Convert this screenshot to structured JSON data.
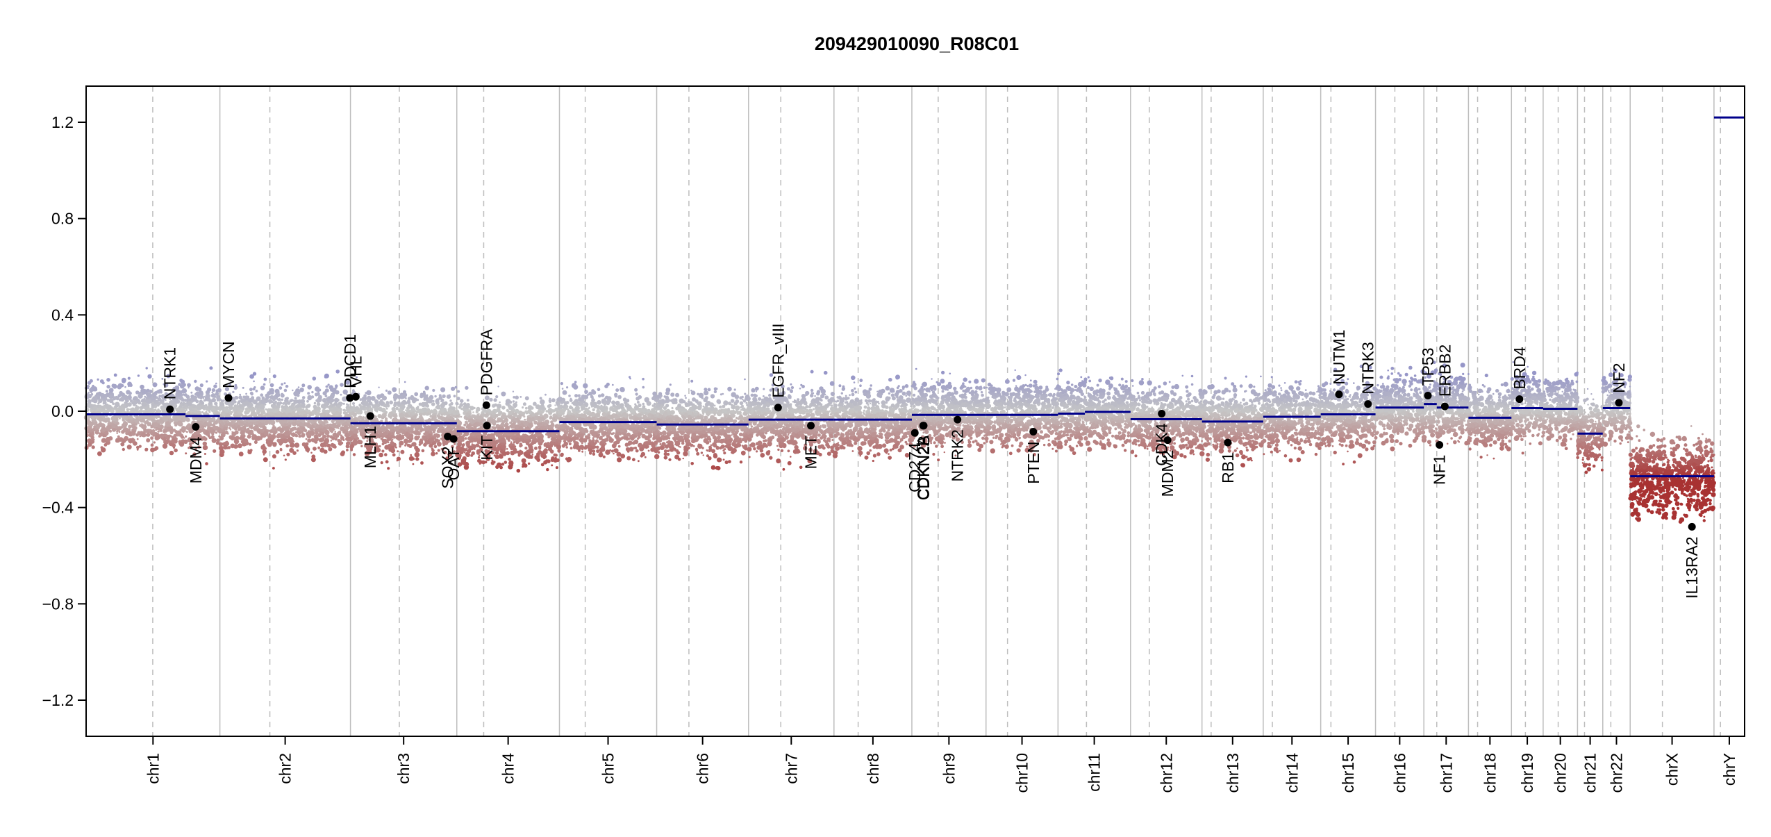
{
  "chart_data": {
    "type": "scatter",
    "title": "209429010090_R08C01",
    "ylim": [
      -1.35,
      1.35
    ],
    "y_ticks": [
      -1.2,
      -0.8,
      -0.4,
      0.0,
      0.4,
      0.8,
      1.2
    ],
    "y_tick_labels": [
      "−1.2",
      "−0.8",
      "−0.4",
      "0.0",
      "0.4",
      "0.8",
      "1.2"
    ],
    "grid": "vertical chromosome boundaries (solid) and centromeres (dashed)",
    "colors": {
      "gain": "#9a9ac8",
      "neutral": "#c6c6c6",
      "loss": "#a83a3a",
      "segment": "#00008b",
      "gene_dot": "#000000"
    },
    "chromosomes": [
      {
        "name": "chr1",
        "length": 249,
        "centromere": 124
      },
      {
        "name": "chr2",
        "length": 243,
        "centromere": 93
      },
      {
        "name": "chr3",
        "length": 198,
        "centromere": 91
      },
      {
        "name": "chr4",
        "length": 191,
        "centromere": 50
      },
      {
        "name": "chr5",
        "length": 181,
        "centromere": 48
      },
      {
        "name": "chr6",
        "length": 171,
        "centromere": 60
      },
      {
        "name": "chr7",
        "length": 159,
        "centromere": 60
      },
      {
        "name": "chr8",
        "length": 145,
        "centromere": 45
      },
      {
        "name": "chr9",
        "length": 138,
        "centromere": 49
      },
      {
        "name": "chr10",
        "length": 134,
        "centromere": 40
      },
      {
        "name": "chr11",
        "length": 135,
        "centromere": 53
      },
      {
        "name": "chr12",
        "length": 133,
        "centromere": 35
      },
      {
        "name": "chr13",
        "length": 114,
        "centromere": 17
      },
      {
        "name": "chr14",
        "length": 107,
        "centromere": 17
      },
      {
        "name": "chr15",
        "length": 102,
        "centromere": 19
      },
      {
        "name": "chr16",
        "length": 90,
        "centromere": 36
      },
      {
        "name": "chr17",
        "length": 83,
        "centromere": 24
      },
      {
        "name": "chr18",
        "length": 80,
        "centromere": 17
      },
      {
        "name": "chr19",
        "length": 59,
        "centromere": 26
      },
      {
        "name": "chr20",
        "length": 64,
        "centromere": 28
      },
      {
        "name": "chr21",
        "length": 47,
        "centromere": 13
      },
      {
        "name": "chr22",
        "length": 51,
        "centromere": 15
      },
      {
        "name": "chrX",
        "length": 156,
        "centromere": 60
      },
      {
        "name": "chrY",
        "length": 57,
        "centromere": 12
      }
    ],
    "segments": [
      {
        "chr": "chr1",
        "start": 0,
        "end": 185,
        "y": -0.013
      },
      {
        "chr": "chr1",
        "start": 185,
        "end": 249,
        "y": -0.02
      },
      {
        "chr": "chr2",
        "start": 0,
        "end": 243,
        "y": -0.03
      },
      {
        "chr": "chr3",
        "start": 0,
        "end": 198,
        "y": -0.05
      },
      {
        "chr": "chr4",
        "start": 0,
        "end": 191,
        "y": -0.083
      },
      {
        "chr": "chr5",
        "start": 0,
        "end": 181,
        "y": -0.045
      },
      {
        "chr": "chr6",
        "start": 0,
        "end": 171,
        "y": -0.055
      },
      {
        "chr": "chr7",
        "start": 0,
        "end": 159,
        "y": -0.035
      },
      {
        "chr": "chr8",
        "start": 0,
        "end": 145,
        "y": -0.035
      },
      {
        "chr": "chr9",
        "start": 0,
        "end": 138,
        "y": -0.015
      },
      {
        "chr": "chr10",
        "start": 0,
        "end": 134,
        "y": -0.015
      },
      {
        "chr": "chr11",
        "start": 0,
        "end": 50,
        "y": -0.01
      },
      {
        "chr": "chr11",
        "start": 50,
        "end": 135,
        "y": -0.003
      },
      {
        "chr": "chr12",
        "start": 0,
        "end": 133,
        "y": -0.033
      },
      {
        "chr": "chr13",
        "start": 0,
        "end": 114,
        "y": -0.043
      },
      {
        "chr": "chr14",
        "start": 0,
        "end": 107,
        "y": -0.023
      },
      {
        "chr": "chr15",
        "start": 0,
        "end": 102,
        "y": -0.013
      },
      {
        "chr": "chr16",
        "start": 0,
        "end": 90,
        "y": 0.015
      },
      {
        "chr": "chr17",
        "start": 0,
        "end": 24,
        "y": 0.03
      },
      {
        "chr": "chr17",
        "start": 24,
        "end": 83,
        "y": 0.015
      },
      {
        "chr": "chr18",
        "start": 0,
        "end": 80,
        "y": -0.027
      },
      {
        "chr": "chr19",
        "start": 0,
        "end": 59,
        "y": 0.013
      },
      {
        "chr": "chr20",
        "start": 0,
        "end": 64,
        "y": 0.01
      },
      {
        "chr": "chr21",
        "start": 0,
        "end": 47,
        "y": -0.093
      },
      {
        "chr": "chr22",
        "start": 0,
        "end": 51,
        "y": 0.013
      },
      {
        "chr": "chrX",
        "start": 0,
        "end": 156,
        "y": -0.27
      },
      {
        "chr": "chrY",
        "start": 0,
        "end": 57,
        "y": 1.22
      }
    ],
    "genes": [
      {
        "name": "NTRK1",
        "chr": "chr1",
        "pos": 156,
        "y": 0.008
      },
      {
        "name": "MDM4",
        "chr": "chr1",
        "pos": 204,
        "y": -0.065
      },
      {
        "name": "MYCN",
        "chr": "chr2",
        "pos": 16,
        "y": 0.055
      },
      {
        "name": "PDCD1",
        "chr": "chr2",
        "pos": 242,
        "y": 0.055
      },
      {
        "name": "VHL",
        "chr": "chr3",
        "pos": 10,
        "y": 0.06
      },
      {
        "name": "MLH1",
        "chr": "chr3",
        "pos": 37,
        "y": -0.02
      },
      {
        "name": "SOX2",
        "chr": "chr3",
        "pos": 181,
        "y": -0.105
      },
      {
        "name": "OAT",
        "chr": "chr3",
        "pos": 192,
        "y": -0.115
      },
      {
        "name": "PDGFRA",
        "chr": "chr4",
        "pos": 55,
        "y": 0.025
      },
      {
        "name": "KIT",
        "chr": "chr4",
        "pos": 56,
        "y": -0.06
      },
      {
        "name": "EGFR_vIII",
        "chr": "chr7",
        "pos": 55,
        "y": 0.015
      },
      {
        "name": "MET",
        "chr": "chr7",
        "pos": 116,
        "y": -0.06
      },
      {
        "name": "CD274",
        "chr": "chr9",
        "pos": 5.5,
        "y": -0.09
      },
      {
        "name": "CDKN2A",
        "chr": "chr9",
        "pos": 21,
        "y": -0.06
      },
      {
        "name": "CDKN2B",
        "chr": "chr9",
        "pos": 22,
        "y": -0.06
      },
      {
        "name": "NTRK2",
        "chr": "chr9",
        "pos": 85,
        "y": -0.035
      },
      {
        "name": "PTEN",
        "chr": "chr10",
        "pos": 88,
        "y": -0.085
      },
      {
        "name": "CDK4",
        "chr": "chr12",
        "pos": 58,
        "y": -0.01
      },
      {
        "name": "MDM2",
        "chr": "chr12",
        "pos": 69,
        "y": -0.12
      },
      {
        "name": "RB1",
        "chr": "chr13",
        "pos": 48,
        "y": -0.13
      },
      {
        "name": "NUTM1",
        "chr": "chr15",
        "pos": 34,
        "y": 0.07
      },
      {
        "name": "NTRK3",
        "chr": "chr15",
        "pos": 88,
        "y": 0.03
      },
      {
        "name": "TP53",
        "chr": "chr17",
        "pos": 7.5,
        "y": 0.065
      },
      {
        "name": "NF1",
        "chr": "chr17",
        "pos": 29,
        "y": -0.14
      },
      {
        "name": "ERBB2",
        "chr": "chr17",
        "pos": 39,
        "y": 0.02
      },
      {
        "name": "BRD4",
        "chr": "chr19",
        "pos": 15,
        "y": 0.05
      },
      {
        "name": "NF2",
        "chr": "chr22",
        "pos": 30,
        "y": 0.035
      },
      {
        "name": "IL13RA2",
        "chr": "chrX",
        "pos": 115,
        "y": -0.48
      }
    ]
  }
}
